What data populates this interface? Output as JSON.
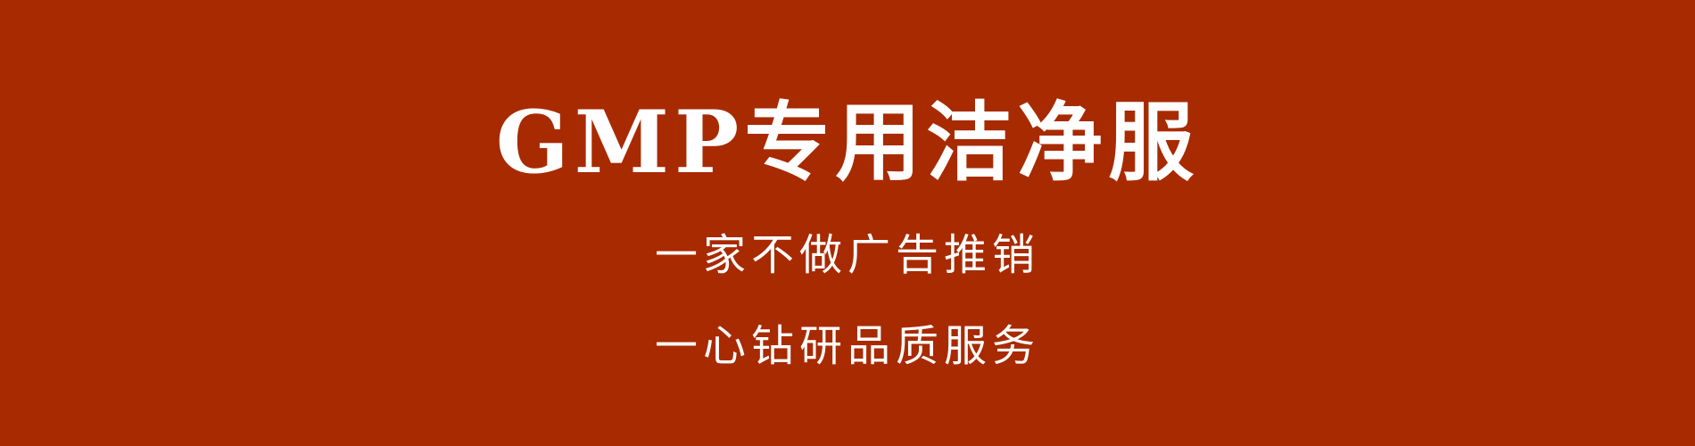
{
  "banner": {
    "title": "GMP专用洁净服",
    "lines": [
      "一家不做广告推销",
      "一心钻研品质服务"
    ],
    "background_color": "#a82a00",
    "text_color": "#ffffff"
  }
}
